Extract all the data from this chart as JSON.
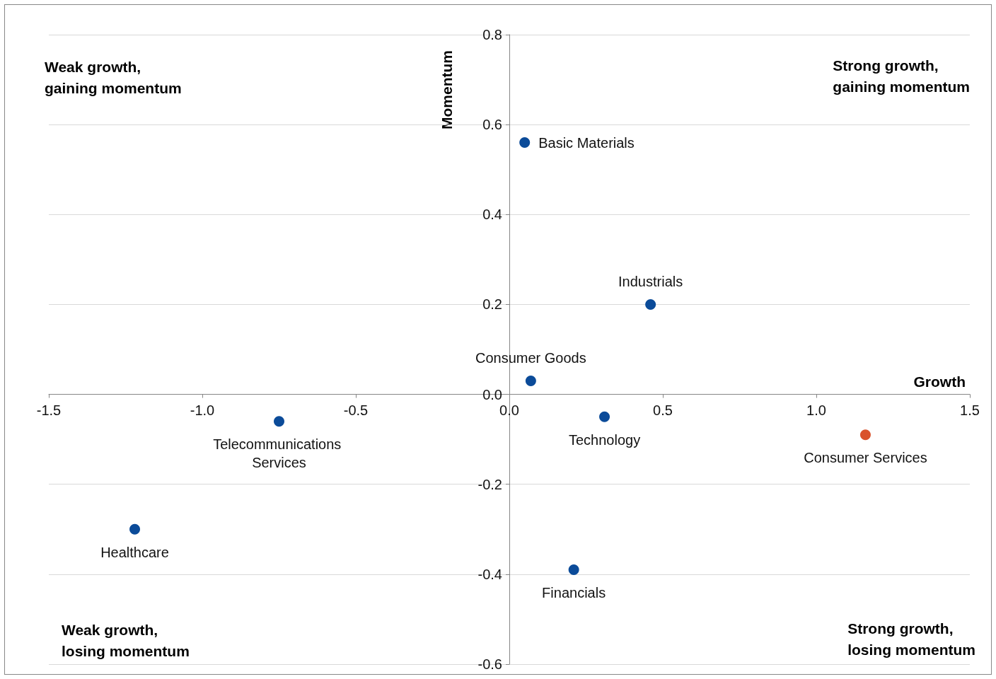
{
  "chart_data": {
    "type": "scatter",
    "xlabel": "Growth",
    "ylabel": "Momentum",
    "annotations": [
      "Weak growth,\ngaining momentum",
      "Strong growth,\ngaining momentum",
      "Weak growth,\nlosing momentum",
      "Strong growth,\nlosing momentum"
    ],
    "xlim": [
      -1.5,
      1.5
    ],
    "xticks": [
      {
        "value": -1.5,
        "label": "-1.5"
      },
      {
        "value": -1,
        "label": "-1.0"
      },
      {
        "value": -0.5,
        "label": "-0.5"
      },
      {
        "value": 0,
        "label": "0.0"
      },
      {
        "value": 0.5,
        "label": "0.5"
      },
      {
        "value": 1,
        "label": "1.0"
      },
      {
        "value": 1.5,
        "label": "1.5"
      }
    ],
    "ylim": [
      -0.6,
      0.8
    ],
    "yticks": [
      {
        "value": -0.6,
        "label": "-0.6"
      },
      {
        "value": -0.4,
        "label": "-0.4"
      },
      {
        "value": -0.2,
        "label": "-0.2"
      },
      {
        "value": 0,
        "label": "0.0"
      },
      {
        "value": 0.2,
        "label": "0.2"
      },
      {
        "value": 0.4,
        "label": "0.4"
      },
      {
        "value": 0.6,
        "label": "0.6"
      },
      {
        "value": 0.8,
        "label": "0.8"
      }
    ],
    "grid": "y",
    "marker": "circle",
    "series": [
      {
        "name": "Basic Materials",
        "color": "#0b4b99",
        "x": [
          0.05
        ],
        "values": [
          0.56
        ]
      },
      {
        "name": "Industrials",
        "color": "#0b4b99",
        "x": [
          0.46
        ],
        "values": [
          0.2
        ]
      },
      {
        "name": "Consumer Goods",
        "color": "#0b4b99",
        "x": [
          0.07
        ],
        "values": [
          0.03
        ]
      },
      {
        "name": "Technology",
        "color": "#0b4b99",
        "x": [
          0.31
        ],
        "values": [
          -0.05
        ]
      },
      {
        "name": "Consumer Services",
        "color": "#d9522c",
        "x": [
          1.16
        ],
        "values": [
          -0.09
        ]
      },
      {
        "name": "Telecommunications Services",
        "color": "#0b4b99",
        "x": [
          -0.75
        ],
        "values": [
          -0.06
        ]
      },
      {
        "name": "Healthcare",
        "color": "#0b4b99",
        "x": [
          -1.22
        ],
        "values": [
          -0.3
        ]
      },
      {
        "name": "Financials",
        "color": "#0b4b99",
        "x": [
          0.21
        ],
        "values": [
          -0.39
        ]
      }
    ]
  }
}
